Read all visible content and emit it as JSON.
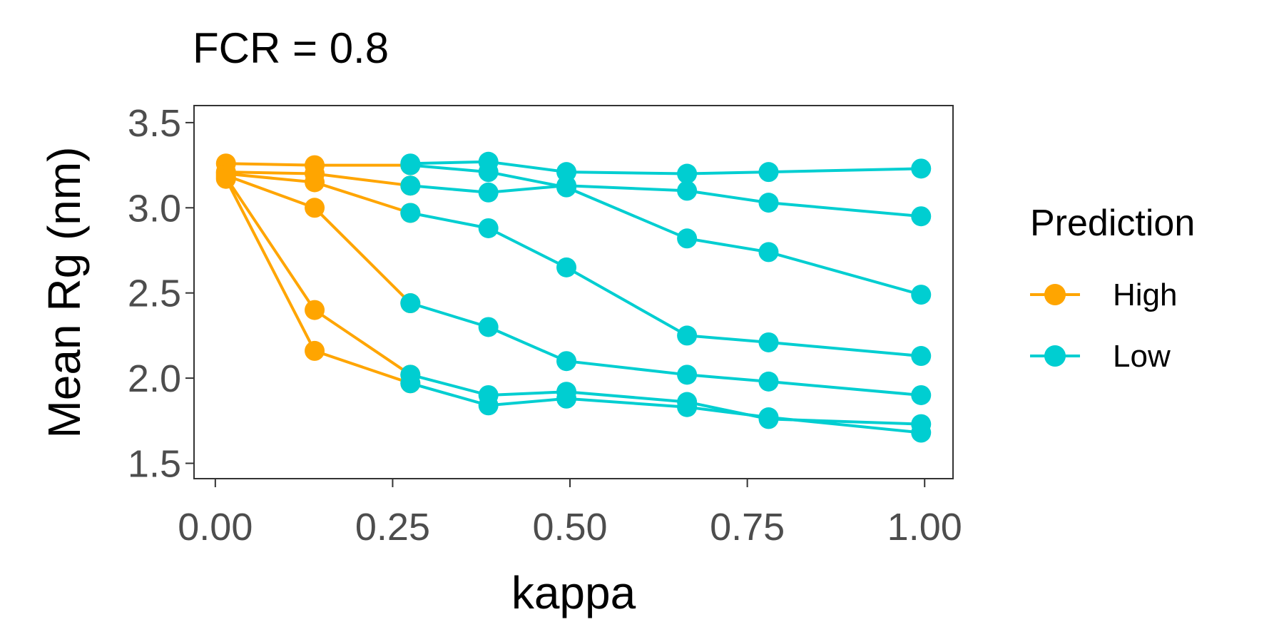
{
  "chart_data": {
    "type": "line",
    "title": "FCR = 0.8",
    "xlabel": "kappa",
    "ylabel": "Mean Rg (nm)",
    "xlim": [
      -0.03,
      1.04
    ],
    "ylim": [
      1.41,
      3.6
    ],
    "x_ticks": [
      0.0,
      0.25,
      0.5,
      0.75,
      1.0
    ],
    "x_tick_labels": [
      "0.00",
      "0.25",
      "0.50",
      "0.75",
      "1.00"
    ],
    "y_ticks": [
      1.5,
      2.0,
      2.5,
      3.0,
      3.5
    ],
    "y_tick_labels": [
      "1.5",
      "2.0",
      "2.5",
      "3.0",
      "3.5"
    ],
    "grid": false,
    "legend": {
      "title": "Prediction",
      "position": "right",
      "entries": [
        {
          "label": "High",
          "color": "#FFA500"
        },
        {
          "label": "Low",
          "color": "#00CED1"
        }
      ]
    },
    "series": [
      {
        "group": "High",
        "color": "#FFA500",
        "points": [
          [
            0.015,
            3.26
          ],
          [
            0.14,
            3.25
          ],
          [
            0.275,
            3.25
          ]
        ]
      },
      {
        "group": "High",
        "color": "#FFA500",
        "points": [
          [
            0.015,
            3.21
          ],
          [
            0.14,
            3.2
          ],
          [
            0.275,
            3.13
          ]
        ]
      },
      {
        "group": "High",
        "color": "#FFA500",
        "points": [
          [
            0.015,
            3.2
          ],
          [
            0.14,
            3.15
          ],
          [
            0.275,
            2.97
          ]
        ]
      },
      {
        "group": "High",
        "color": "#FFA500",
        "points": [
          [
            0.015,
            3.19
          ],
          [
            0.14,
            3.0
          ],
          [
            0.275,
            2.44
          ]
        ]
      },
      {
        "group": "High",
        "color": "#FFA500",
        "points": [
          [
            0.015,
            3.18
          ],
          [
            0.14,
            2.4
          ],
          [
            0.275,
            2.02
          ]
        ]
      },
      {
        "group": "High",
        "color": "#FFA500",
        "points": [
          [
            0.015,
            3.17
          ],
          [
            0.14,
            2.16
          ],
          [
            0.275,
            1.97
          ]
        ]
      },
      {
        "group": "Low",
        "color": "#00CED1",
        "points": [
          [
            0.275,
            3.26
          ],
          [
            0.385,
            3.27
          ],
          [
            0.495,
            3.21
          ],
          [
            0.665,
            3.2
          ],
          [
            0.78,
            3.21
          ],
          [
            0.995,
            3.23
          ]
        ]
      },
      {
        "group": "Low",
        "color": "#00CED1",
        "points": [
          [
            0.275,
            3.25
          ],
          [
            0.385,
            3.21
          ],
          [
            0.495,
            3.12
          ],
          [
            0.665,
            2.82
          ],
          [
            0.78,
            2.74
          ],
          [
            0.995,
            2.49
          ]
        ]
      },
      {
        "group": "Low",
        "color": "#00CED1",
        "points": [
          [
            0.275,
            3.13
          ],
          [
            0.385,
            3.09
          ],
          [
            0.495,
            3.13
          ],
          [
            0.665,
            3.1
          ],
          [
            0.78,
            3.03
          ],
          [
            0.995,
            2.95
          ]
        ]
      },
      {
        "group": "Low",
        "color": "#00CED1",
        "points": [
          [
            0.275,
            2.97
          ],
          [
            0.385,
            2.88
          ],
          [
            0.495,
            2.65
          ],
          [
            0.665,
            2.25
          ],
          [
            0.78,
            2.21
          ],
          [
            0.995,
            2.13
          ]
        ]
      },
      {
        "group": "Low",
        "color": "#00CED1",
        "points": [
          [
            0.275,
            2.44
          ],
          [
            0.385,
            2.3
          ],
          [
            0.495,
            2.1
          ],
          [
            0.665,
            2.02
          ],
          [
            0.78,
            1.98
          ],
          [
            0.995,
            1.9
          ]
        ]
      },
      {
        "group": "Low",
        "color": "#00CED1",
        "points": [
          [
            0.275,
            2.02
          ],
          [
            0.385,
            1.9
          ],
          [
            0.495,
            1.92
          ],
          [
            0.665,
            1.86
          ],
          [
            0.78,
            1.76
          ],
          [
            0.995,
            1.73
          ]
        ]
      },
      {
        "group": "Low",
        "color": "#00CED1",
        "points": [
          [
            0.275,
            1.97
          ],
          [
            0.385,
            1.84
          ],
          [
            0.495,
            1.88
          ],
          [
            0.665,
            1.83
          ],
          [
            0.78,
            1.77
          ],
          [
            0.995,
            1.68
          ]
        ]
      }
    ]
  }
}
